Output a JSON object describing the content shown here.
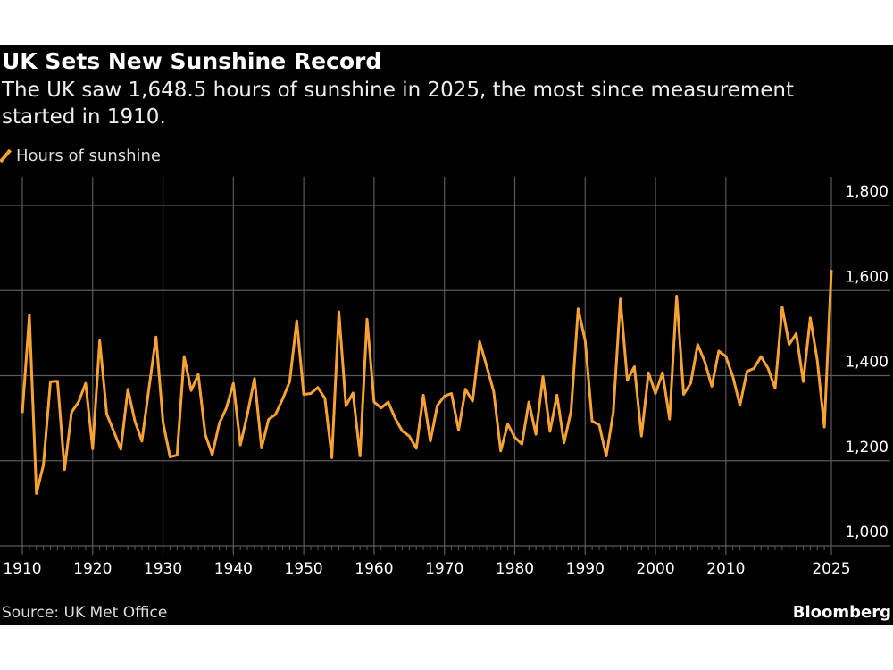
{
  "title": "UK Sets New Sunshine Record",
  "subtitle": "The UK saw 1,648.5 hours of sunshine in 2025, the most since measurement started in 1910.",
  "source": "Source: UK Met Office",
  "brand": "Bloomberg",
  "colors": {
    "line": "#f7a234",
    "background": "#000000",
    "grid": "#5a5a5a"
  },
  "chart_data": {
    "type": "line",
    "title": "UK Sets New Sunshine Record",
    "legend": "top-left",
    "grid": true,
    "ylim": [
      1000,
      1800
    ],
    "xlim": [
      1910,
      2025
    ],
    "y_ticks": [
      "1,000",
      "1,200",
      "1,400",
      "1,600",
      "1,800"
    ],
    "y_tick_values": [
      1000,
      1200,
      1400,
      1600,
      1800
    ],
    "x_ticks": [
      "1910",
      "1920",
      "1930",
      "1940",
      "1950",
      "1960",
      "1970",
      "1980",
      "1990",
      "2000",
      "2010",
      "2025"
    ],
    "x_tick_values": [
      1910,
      1920,
      1930,
      1940,
      1950,
      1960,
      1970,
      1980,
      1990,
      2000,
      2010,
      2025
    ],
    "x_start": 1910,
    "series": [
      {
        "name": "Hours of sunshine",
        "values": [
          1312,
          1543,
          1123,
          1190,
          1386,
          1387,
          1179,
          1314,
          1338,
          1382,
          1228,
          1482,
          1310,
          1269,
          1227,
          1368,
          1293,
          1246,
          1370,
          1491,
          1290,
          1209,
          1213,
          1445,
          1365,
          1403,
          1262,
          1214,
          1288,
          1324,
          1382,
          1237,
          1310,
          1393,
          1230,
          1297,
          1309,
          1345,
          1386,
          1529,
          1356,
          1358,
          1372,
          1347,
          1207,
          1550,
          1329,
          1359,
          1211,
          1533,
          1338,
          1324,
          1338,
          1300,
          1270,
          1258,
          1229,
          1354,
          1246,
          1330,
          1352,
          1358,
          1272,
          1368,
          1340,
          1480,
          1422,
          1363,
          1223,
          1286,
          1255,
          1239,
          1338,
          1262,
          1398,
          1269,
          1354,
          1242,
          1317,
          1557,
          1482,
          1293,
          1284,
          1211,
          1314,
          1580,
          1389,
          1421,
          1258,
          1407,
          1358,
          1407,
          1298,
          1587,
          1356,
          1382,
          1473,
          1433,
          1375,
          1458,
          1445,
          1398,
          1330,
          1410,
          1417,
          1445,
          1417,
          1370,
          1561,
          1473,
          1499,
          1386,
          1536,
          1436,
          1279,
          1648.5
        ]
      }
    ]
  }
}
